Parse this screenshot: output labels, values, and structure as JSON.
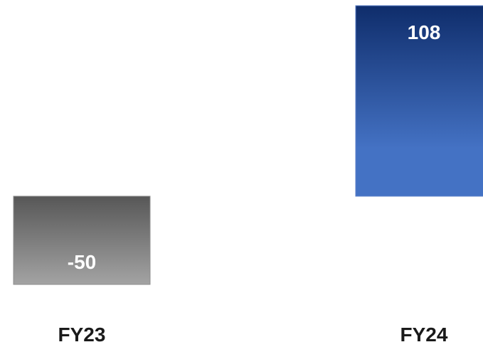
{
  "chart_data": {
    "type": "bar",
    "categories": [
      "FY23",
      "FY24"
    ],
    "values": [
      -50,
      108
    ],
    "data_labels": [
      "-50",
      "108"
    ],
    "title": "",
    "xlabel": "",
    "ylabel": "",
    "ylim": [
      -50,
      108
    ],
    "grid": false,
    "legend": "none",
    "colors": {
      "negative_top": "#575757",
      "negative_bottom": "#a3a3a3",
      "negative_edge": "#8c8c8c",
      "positive_top": "#0f2d6b",
      "positive_bottom": "#4472c4",
      "positive_edge": "#5b7fc9"
    }
  }
}
